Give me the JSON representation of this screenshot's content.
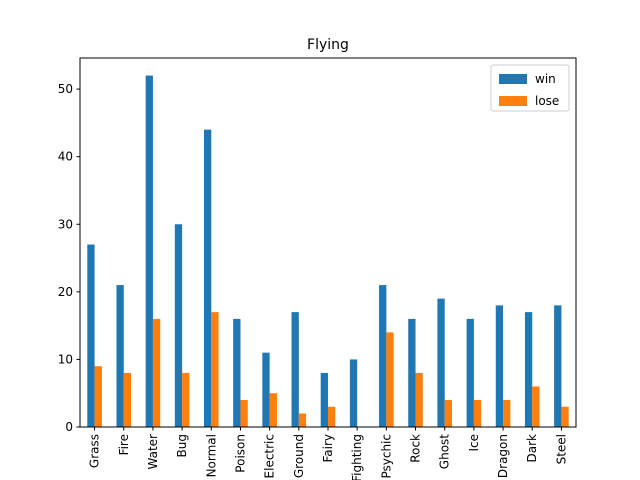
{
  "chart_data": {
    "type": "bar",
    "title": "Flying",
    "xlabel": "",
    "ylabel": "",
    "categories": [
      "Grass",
      "Fire",
      "Water",
      "Bug",
      "Normal",
      "Poison",
      "Electric",
      "Ground",
      "Fairy",
      "Fighting",
      "Psychic",
      "Rock",
      "Ghost",
      "Ice",
      "Dragon",
      "Dark",
      "Steel"
    ],
    "series": [
      {
        "name": "win",
        "color": "#1f77b4",
        "values": [
          27,
          21,
          52,
          30,
          44,
          16,
          11,
          17,
          8,
          10,
          21,
          16,
          19,
          16,
          18,
          17,
          18
        ]
      },
      {
        "name": "lose",
        "color": "#ff7f0e",
        "values": [
          9,
          8,
          16,
          8,
          17,
          4,
          5,
          2,
          3,
          0,
          14,
          8,
          4,
          4,
          4,
          6,
          3
        ]
      }
    ],
    "ylim": [
      0,
      54.6
    ],
    "yticks": [
      0,
      10,
      20,
      30,
      40,
      50
    ],
    "grid": false,
    "legend_position": "top-right"
  }
}
